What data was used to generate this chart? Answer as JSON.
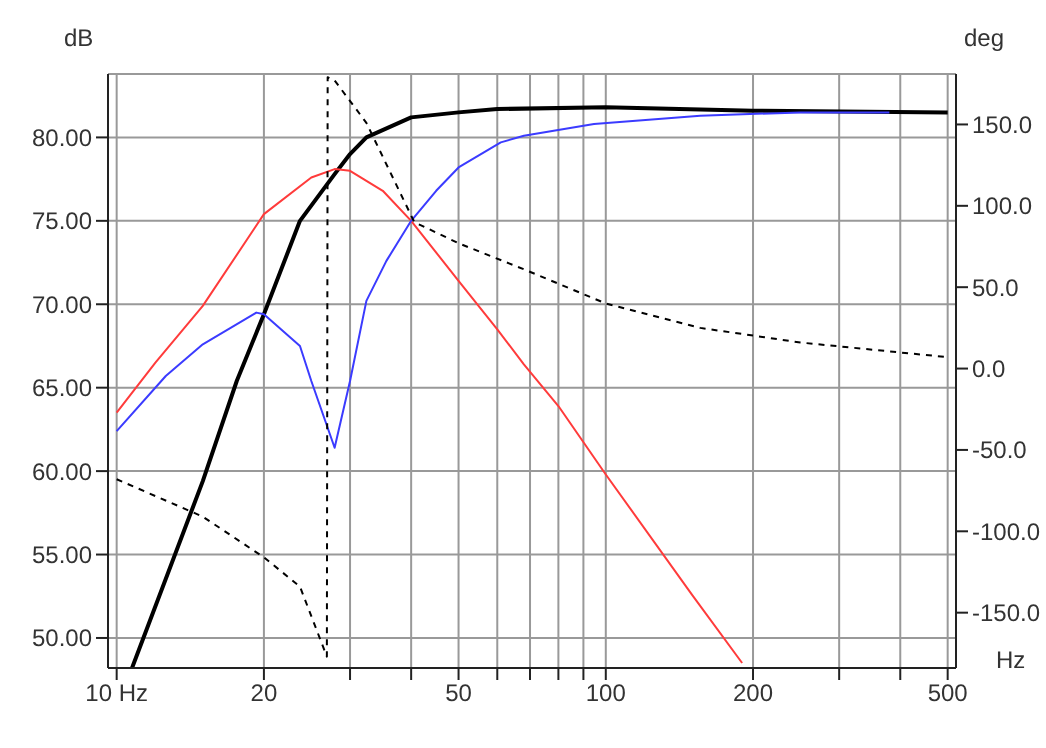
{
  "chart_data": {
    "type": "line",
    "ylabel": "dB",
    "y2label": "deg",
    "xlabel": "Hz",
    "log": "x",
    "grid": true,
    "xlim": [
      9.6,
      520
    ],
    "xticks": [
      {
        "value": 10,
        "label": "10 Hz"
      },
      20,
      {
        "value": 30,
        "label": null
      },
      {
        "value": 40,
        "label": null
      },
      50,
      {
        "value": 60,
        "label": null
      },
      {
        "value": 70,
        "label": null
      },
      {
        "value": 80,
        "label": null
      },
      {
        "value": 90,
        "label": null
      },
      100,
      200,
      {
        "value": 300,
        "label": null
      },
      {
        "value": 400,
        "label": null
      },
      500
    ],
    "ylim": [
      48.2,
      83.8
    ],
    "yticks": [
      {
        "value": 50,
        "label": "50.00"
      },
      {
        "value": 55,
        "label": "55.00"
      },
      {
        "value": 60,
        "label": "60.00"
      },
      {
        "value": 65,
        "label": "65.00"
      },
      {
        "value": 70,
        "label": "70.00"
      },
      {
        "value": 75,
        "label": "75.00"
      },
      {
        "value": 80,
        "label": "80.00"
      }
    ],
    "y2lim": [
      -184,
      181
    ],
    "y2ticks": [
      {
        "value": -150,
        "label": "-150.0"
      },
      {
        "value": -100,
        "label": "-100.0"
      },
      {
        "value": -50,
        "label": "-50.0"
      },
      {
        "value": 0,
        "label": "0.0"
      },
      {
        "value": 50,
        "label": "50.0"
      },
      {
        "value": 100,
        "label": "100.0"
      },
      {
        "value": 150,
        "label": "150.0"
      }
    ],
    "series": [
      {
        "color": "#ff3b3b",
        "line_style": "solid",
        "x": [
          10,
          12,
          15,
          20,
          25,
          27.9,
          30,
          35,
          40,
          50,
          60,
          68,
          80,
          100,
          150,
          190
        ],
        "values": [
          63.5,
          66.5,
          69.9,
          75.4,
          77.6,
          78.1,
          78.0,
          76.8,
          75.0,
          71.4,
          68.5,
          66.4,
          63.9,
          59.8,
          52.6,
          48.5
        ]
      },
      {
        "color": "#3b3bff",
        "line_style": "solid",
        "x": [
          10,
          12.6,
          15,
          19.3,
          20,
          23.7,
          25,
          27.9,
          30,
          32.4,
          35.6,
          40,
          45,
          50,
          61,
          68,
          94.6,
          156,
          250,
          380
        ],
        "values": [
          62.4,
          65.7,
          67.6,
          69.5,
          69.4,
          67.5,
          65.4,
          61.4,
          65.4,
          70.2,
          72.6,
          75.0,
          76.8,
          78.2,
          79.7,
          80.1,
          80.8,
          81.3,
          81.5,
          81.5
        ]
      },
      {
        "color": "#000000",
        "line_style": "solid",
        "x": [
          10.75,
          15,
          17.6,
          20,
          23.7,
          27.9,
          30,
          32.4,
          40,
          50,
          60,
          100,
          200,
          500
        ],
        "values": [
          48.2,
          59.4,
          65.4,
          69.4,
          75.0,
          77.8,
          79.0,
          80.0,
          81.2,
          81.5,
          81.7,
          81.8,
          81.6,
          81.5
        ]
      },
      {
        "color": "#000000",
        "line_style": "dashed",
        "axis": "y2",
        "x": [
          10,
          15,
          20,
          23.7,
          26.9,
          27.0,
          27.9,
          32.4,
          40.6,
          50,
          68,
          100,
          156,
          250,
          500
        ],
        "values": [
          -68,
          -91,
          -116,
          -134,
          -177,
          179,
          177,
          151,
          90,
          77,
          61,
          40,
          25,
          16,
          7
        ]
      }
    ]
  }
}
